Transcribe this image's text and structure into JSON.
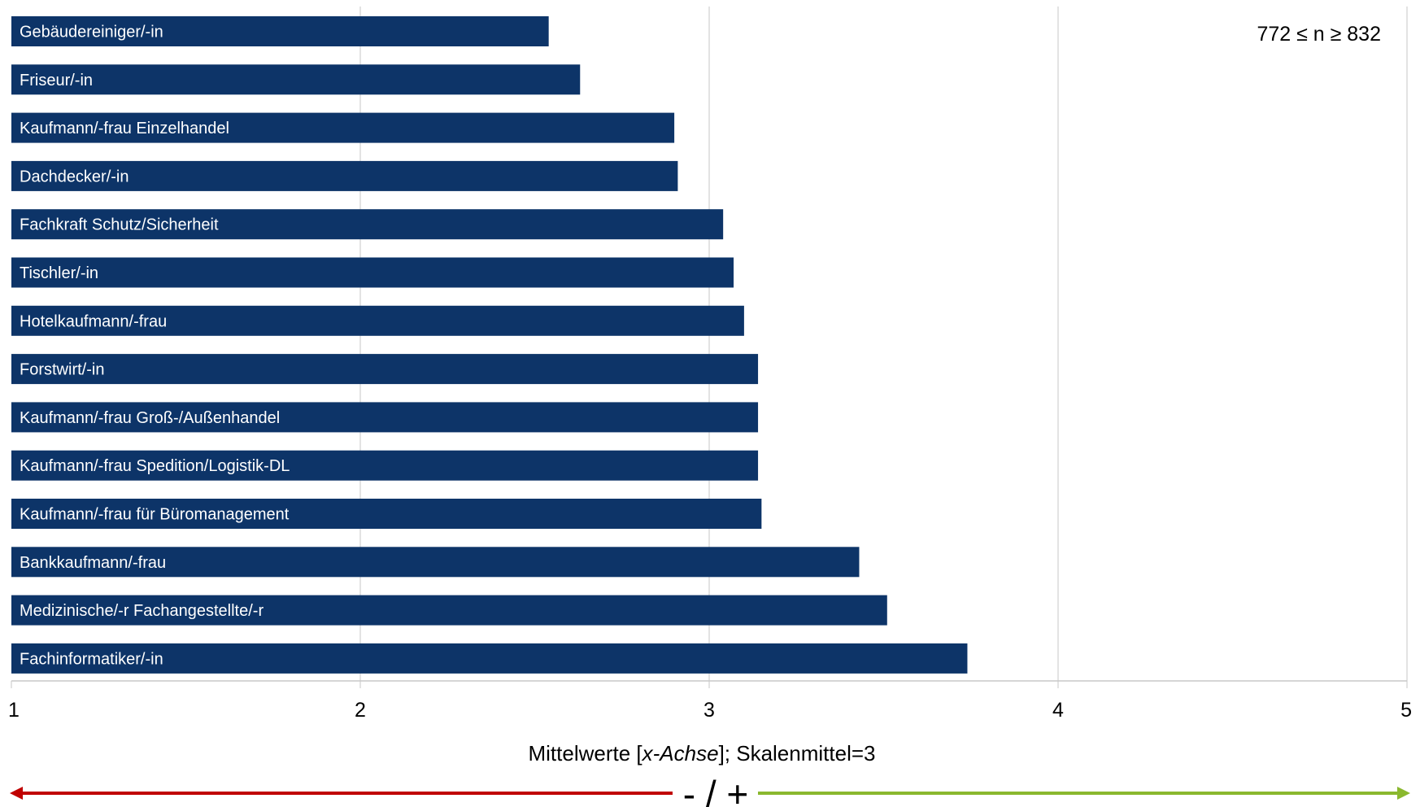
{
  "chart_data": {
    "type": "bar",
    "orientation": "horizontal",
    "categories": [
      "Gebäudereiniger/-in",
      "Friseur/-in",
      "Kaufmann/-frau Einzelhandel",
      "Dachdecker/-in",
      "Fachkraft Schutz/Sicherheit",
      "Tischler/-in",
      "Hotelkaufmann/-frau",
      "Forstwirt/-in",
      "Kaufmann/-frau Groß-/Außenhandel",
      "Kaufmann/-frau Spedition/Logistik-DL",
      "Kaufmann/-frau für Büromanagement",
      "Bankkaufmann/-frau",
      "Medizinische/-r Fachangestellte/-r",
      "Fachinformatiker/-in"
    ],
    "values": [
      2.54,
      2.63,
      2.9,
      2.91,
      3.04,
      3.07,
      3.1,
      3.14,
      3.14,
      3.14,
      3.15,
      3.43,
      3.51,
      3.74
    ],
    "xlim": [
      1,
      5
    ],
    "xticks": [
      "1",
      "2",
      "3",
      "4",
      "5"
    ],
    "xlabel_parts": [
      "Mittelwerte [",
      "x-Achse",
      "]; Skalenmittel=3"
    ],
    "annotation": "772 ≤ n ≥ 832",
    "scale_indicator": "- / +",
    "grid": true,
    "colors": {
      "bar": "#0d3468",
      "negative_arrow": "#c00000",
      "positive_arrow": "#8ab82e",
      "grid": "#d0d0d0"
    }
  }
}
